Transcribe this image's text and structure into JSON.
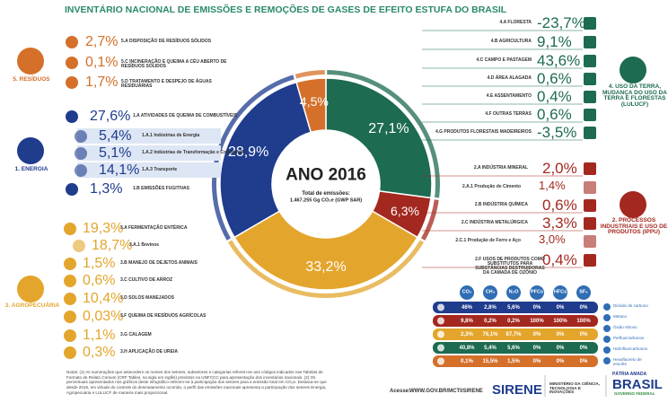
{
  "title": "INVENTÁRIO NACIONAL DE EMISSÕES E REMOÇÕES DE GASES DE EFEITO ESTUFA DO BRASIL",
  "chart_data": {
    "type": "pie",
    "title": "ANO 2016",
    "subtitle": "Total de emissões:",
    "annotation": "1.467.255 Gg CO₂e (GWP SAR)",
    "categories": [
      "4. USO DA TERRA, MUDANÇA DO USO DA TERRA E FLORESTAS (LULUCF)",
      "2. PROCESSOS INDUSTRIAIS E USO DE PRODUTOS (IPPU)",
      "3. AGROPECUÁRIA",
      "1. ENERGIA",
      "5. RESÍDUOS"
    ],
    "values": [
      27.1,
      6.3,
      33.2,
      28.9,
      4.5
    ],
    "value_labels": [
      "27,1%",
      "6,3%",
      "33,2%",
      "28,9%",
      "4,5%"
    ],
    "colors": [
      "#1d6b50",
      "#a3281f",
      "#e3a52c",
      "#1f3c8d",
      "#d4702a"
    ]
  },
  "sectors": [
    {
      "items": [
        {
          "value": "-23,7%",
          "label": "4.A FLORESTA"
        },
        {
          "value": "9,1%",
          "label": "4.B AGRICULTURA"
        },
        {
          "value": "43,6%",
          "label": "4.C CAMPO E PASTAGEM"
        },
        {
          "value": "0,6%",
          "label": "4.D ÁREA ALAGADA"
        },
        {
          "value": "0,4%",
          "label": "4.E ASSENTAMENTO"
        },
        {
          "value": "0,6%",
          "label": "4.F OUTRAS TERRAS"
        },
        {
          "value": "-3,5%",
          "label": "4.G PRODUTOS FLORESTAIS MADEIREIROS"
        }
      ]
    },
    {
      "items": [
        {
          "value": "2,0%",
          "label": "2.A INDÚSTRIA MINERAL"
        },
        {
          "value": "1,4%",
          "label": "2.A.1 Produção de Cimento"
        },
        {
          "value": "0,6%",
          "label": "2.B INDÚSTRIA QUÍMICA"
        },
        {
          "value": "3,3%",
          "label": "2.C INDÚSTRIA METALÚRGICA"
        },
        {
          "value": "3,0%",
          "label": "2.C.1 Produção de Ferro e Aço"
        },
        {
          "value": "0,4%",
          "label": "2.F USOS DE PRODUTOS COMO SUBSTITUTOS PARA SUBSTÂNCIAS DESTRUIDORAS DA CAMADA DE OZÔNIO"
        }
      ]
    },
    {
      "items": [
        {
          "value": "19,3%",
          "label": "3.A FERMENTAÇÃO ENTÉRICA"
        },
        {
          "value": "18,7%",
          "label": "3.A.1 Bovinos"
        },
        {
          "value": "1,5%",
          "label": "3.B MANEJO DE DEJETOS ANIMAIS"
        },
        {
          "value": "0,6%",
          "label": "3.C CULTIVO DE ARROZ"
        },
        {
          "value": "10,4%",
          "label": "3.D SOLOS MANEJADOS"
        },
        {
          "value": "0,03%",
          "label": "3.F QUEIMA DE RESÍDUOS AGRÍCOLAS"
        },
        {
          "value": "1,1%",
          "label": "3.G CALAGEM"
        },
        {
          "value": "0,3%",
          "label": "3.H APLICAÇÃO DE UREIA"
        }
      ]
    },
    {
      "items": [
        {
          "value": "27,6%",
          "label": "1.A ATIVIDADES DE QUEIMA DE COMBUSTÍVEIS"
        },
        {
          "value": "5,4%",
          "label": "1.A.1 Indústrias de Energia"
        },
        {
          "value": "5,1%",
          "label": "1.A.2 Indústrias de Transformação e Construção"
        },
        {
          "value": "14,1%",
          "label": "1.A.3 Transporte"
        },
        {
          "value": "1,3%",
          "label": "1.B EMISSÕES FUGITIVAS"
        }
      ]
    },
    {
      "items": [
        {
          "value": "2,7%",
          "label": "5.A DISPOSIÇÃO DE RESÍDUOS SÓLIDOS"
        },
        {
          "value": "0,1%",
          "label": "5.C INCINERAÇÃO E QUEIMA A CÉU ABERTO DE RESÍDUOS SÓLIDOS"
        },
        {
          "value": "1,7%",
          "label": "5.D TRATAMENTO E DESPEJO DE ÁGUAS RESIDUÁRIAS"
        }
      ]
    }
  ],
  "table": {
    "header": [
      "CO₂",
      "CH₄",
      "N₂O",
      "PFCs",
      "HFCs",
      "SF₆"
    ],
    "rows": [
      [
        "46%",
        "2,8%",
        "5,6%",
        "0%",
        "0%",
        "0%"
      ],
      [
        "9,8%",
        "0,2%",
        "0,2%",
        "100%",
        "100%",
        "100%"
      ],
      [
        "2,3%",
        "76,1%",
        "87,7%",
        "0%",
        "0%",
        "0%"
      ],
      [
        "40,8%",
        "5,4%",
        "5,6%",
        "0%",
        "0%",
        "0%"
      ],
      [
        "0,1%",
        "15,5%",
        "1,5%",
        "0%",
        "0%",
        "0%"
      ]
    ]
  },
  "gas_legend": [
    "Dióxido de carbono",
    "Metano",
    "Óxido nitroso",
    "Perfluorcarbonos",
    "Hidrofluorcarbonos",
    "Hexafluoreto de enxofre"
  ],
  "notes": "Notas: (1) As numerações que antecedem os nomes dos setores, subsetores e categorias referem-se aos códigos indicados nas Tabelas de Formato de Relato Comum (CRF Tables, na sigla em inglês) previstos na UNFCCC para apresentação dos inventários nacionais. (2) Os percentuais apresentados nos gráficos deste infográfico referem-se à participação dos setores para a emissão total em CO₂e. Destaca-se que desde 2016, em virtude do controle do desmatamento ocorrido, o perfil das emissões nacionais apresenta a participação dos setores Energia, Agropecuária e LULUCF de maneira mais proporcional.",
  "footer": {
    "access": "Acesse:",
    "url": "WWW.GOV.BR/MCTI/SIRENE",
    "sirene": "SIRENE",
    "ministry": "MINISTÉRIO DA CIÊNCIA, TECNOLOGIA E INOVAÇÕES",
    "motto": "PÁTRIA AMADA",
    "country": "BRASIL",
    "government": "GOVERNO FEDERAL"
  }
}
